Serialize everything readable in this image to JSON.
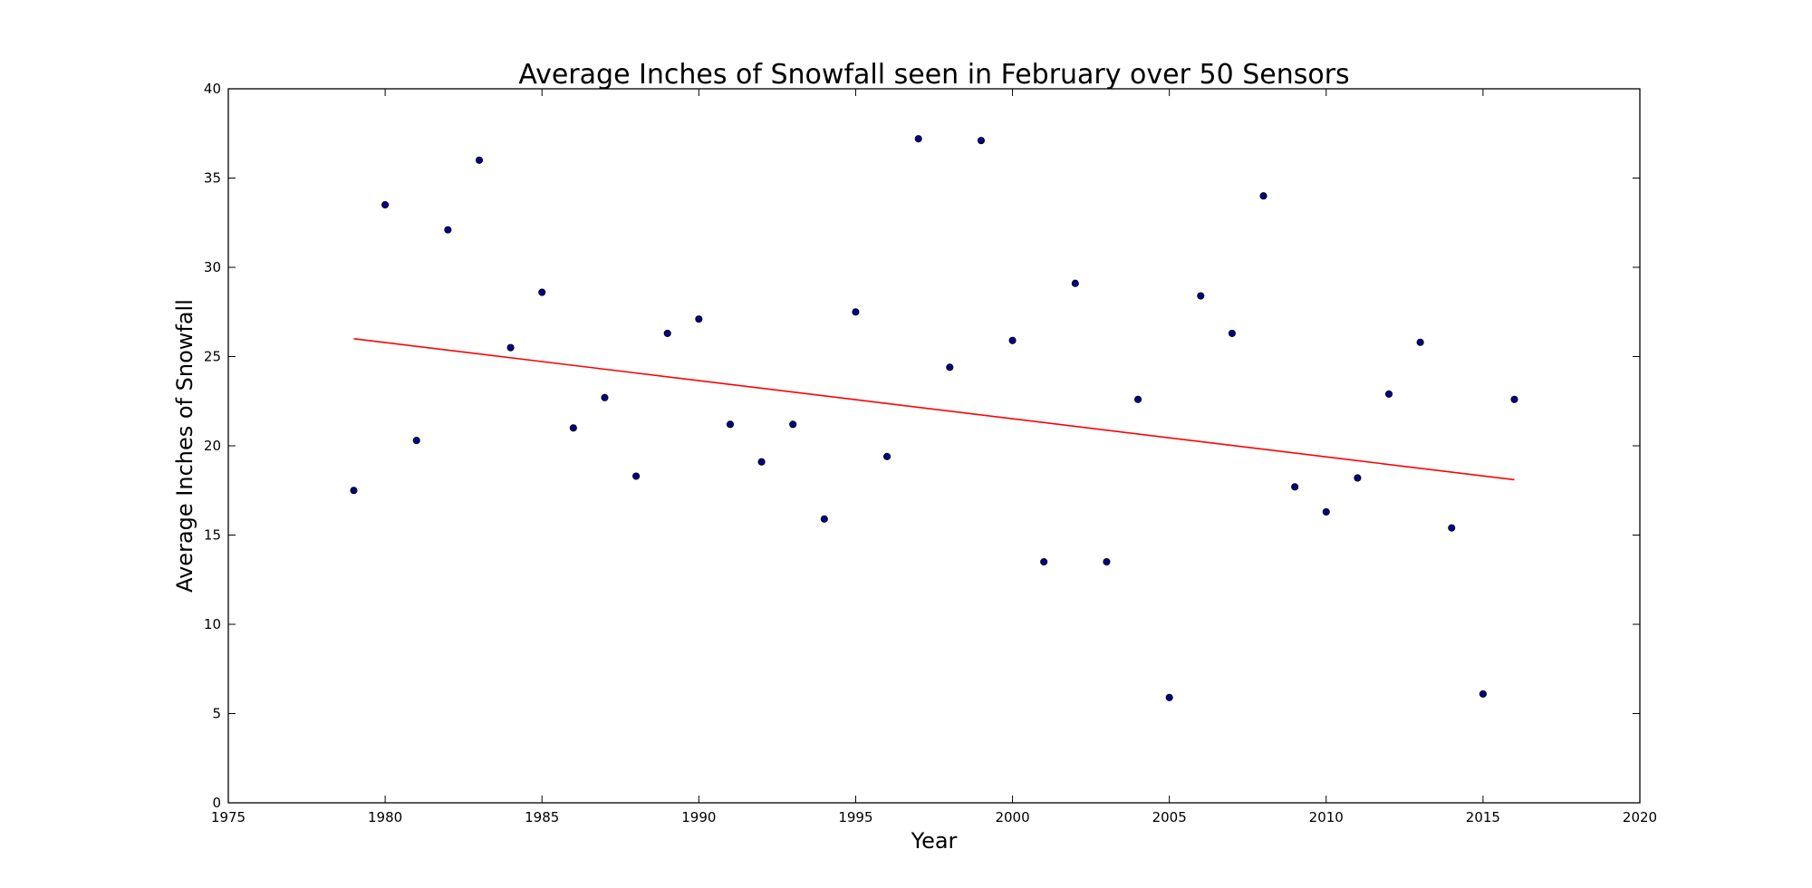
{
  "chart_data": {
    "type": "scatter",
    "title": "Average Inches of Snowfall seen in February over 50 Sensors",
    "xlabel": "Year",
    "ylabel": "Average Inches of Snowfall",
    "xlim": [
      1975,
      2020
    ],
    "ylim": [
      0,
      40
    ],
    "x_ticks": [
      "1975",
      "1980",
      "1985",
      "1990",
      "1995",
      "2000",
      "2005",
      "2010",
      "2015",
      "2020"
    ],
    "y_ticks": [
      "0",
      "5",
      "10",
      "15",
      "20",
      "25",
      "30",
      "35",
      "40"
    ],
    "grid": false,
    "legend": "none",
    "series": [
      {
        "type": "scatter",
        "color": "#00008b",
        "x": [
          1979,
          1980,
          1981,
          1982,
          1983,
          1984,
          1985,
          1986,
          1987,
          1988,
          1989,
          1990,
          1991,
          1992,
          1993,
          1994,
          1995,
          1996,
          1997,
          1998,
          1999,
          2000,
          2001,
          2002,
          2003,
          2004,
          2005,
          2006,
          2007,
          2008,
          2009,
          2010,
          2011,
          2012,
          2013,
          2014,
          2015,
          2016
        ],
        "y": [
          17.5,
          33.5,
          20.3,
          32.1,
          36.0,
          25.5,
          28.6,
          21.0,
          22.7,
          18.3,
          26.3,
          27.1,
          21.2,
          19.1,
          21.2,
          15.9,
          27.5,
          19.4,
          37.2,
          24.4,
          37.1,
          25.9,
          13.5,
          29.1,
          13.5,
          22.6,
          5.9,
          28.4,
          26.3,
          34.0,
          17.7,
          16.3,
          18.2,
          22.9,
          25.8,
          15.4,
          6.1,
          22.6
        ]
      },
      {
        "type": "line",
        "color": "#ff0000",
        "x": [
          1979,
          2016
        ],
        "y": [
          26.0,
          18.1
        ]
      }
    ]
  }
}
